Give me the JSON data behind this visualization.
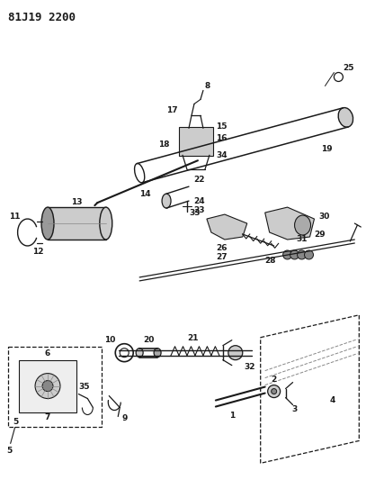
{
  "title": "81J19 2200",
  "bg_color": "#ffffff",
  "fig_width": 4.07,
  "fig_height": 5.33,
  "dpi": 100,
  "black": "#1a1a1a",
  "gray": "#888888",
  "lgray": "#cccccc"
}
